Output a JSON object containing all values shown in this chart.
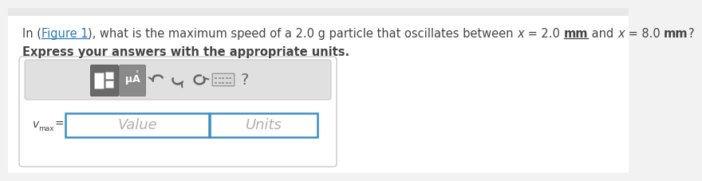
{
  "background_color": "#f2f2f2",
  "page_bg": "#ffffff",
  "question_line": "In (​Figure 1​), what is the maximum speed of a 2.0 g particle that oscillates between x = 2.0 mm and x = 8.0 mm?",
  "express_text": "Express your answers with the appropriate units.",
  "value_placeholder": "Value",
  "units_placeholder": "Units",
  "toolbar_bg": "#e0e0e0",
  "toolbar_border": "#c8c8c8",
  "outer_box_bg": "#ffffff",
  "outer_box_border": "#c8c8c8",
  "input_border": "#3a8fc0",
  "text_color": "#444444",
  "link_color": "#2b7bb9",
  "placeholder_color": "#b0b0b0",
  "btn1_color": "#696969",
  "btn2_color": "#8a8a8a",
  "icon_color": "#666666",
  "font_size_q": 10.5,
  "font_size_express": 10.5,
  "font_size_vmax": 10.0,
  "font_size_placeholder": 13.0
}
